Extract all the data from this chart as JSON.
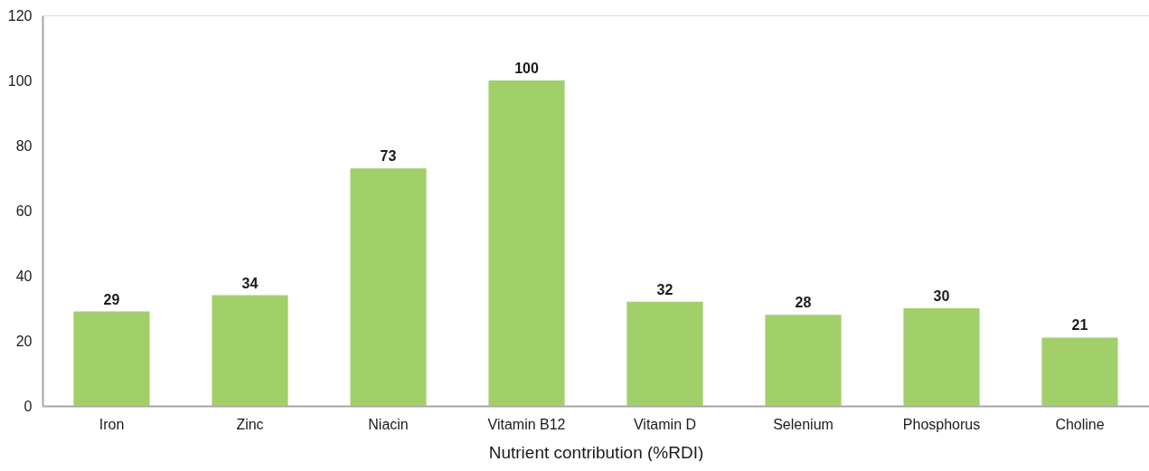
{
  "chart_data": {
    "type": "bar",
    "xlabel": "Nutrient contribution (%RDI)",
    "categories": [
      "Iron",
      "Zinc",
      "Niacin",
      "Vitamin B12",
      "Vitamin D",
      "Selenium",
      "Phosphorus",
      "Choline"
    ],
    "values": [
      29,
      34,
      73,
      100,
      32,
      28,
      30,
      21
    ],
    "color": "#a1cf69",
    "ylim": [
      0,
      120
    ],
    "yticks": [
      0,
      20,
      40,
      60,
      80,
      100,
      120
    ],
    "data_labels": true
  }
}
